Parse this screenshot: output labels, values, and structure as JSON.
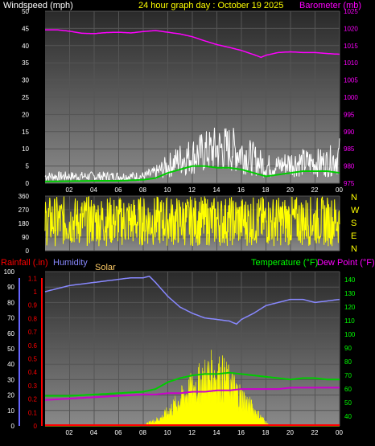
{
  "header": {
    "wind_label": "Windspeed (mph)",
    "title": "24 hour graph day : October 19 2025",
    "baro_label": "Barometer (mb)"
  },
  "bottom_header": {
    "rain_label": "Rainfall (.in)",
    "humidity_label": "Humidity",
    "solar_label": "Solar",
    "temp_label": "Temperature (°F)",
    "dew_label": "Dew Point (°F)"
  },
  "direction_letters": [
    "N",
    "W",
    "S",
    "E",
    "N"
  ],
  "colors": {
    "wind": "#ffffff",
    "gust": "#ffffff",
    "avg_wind": "#00cc00",
    "barometer": "#ff00ff",
    "direction": "#ffff00",
    "temperature": "#00cc00",
    "dew_point": "#cc00cc",
    "humidity": "#8888ff",
    "solar": "#ffff00",
    "rain": "#ff0000",
    "wind_label": "#ffffff",
    "title": "#ffff00",
    "baro_label": "#ff00ff",
    "rain_label": "#ff0000",
    "humidity_label": "#8888ff",
    "solar_label": "#ffcc66",
    "temp_label": "#00ff00",
    "dew_label": "#ff00ff"
  },
  "chart_data": [
    {
      "type": "line",
      "name": "wind-barometer",
      "x_ticks": [
        "02",
        "04",
        "06",
        "08",
        "10",
        "12",
        "14",
        "16",
        "18",
        "20",
        "22",
        "00"
      ],
      "y_left_ticks": [
        "0",
        "5",
        "10",
        "15",
        "20",
        "25",
        "30",
        "35",
        "40",
        "45",
        "50"
      ],
      "y_left_range": [
        0,
        50
      ],
      "y_right_ticks": [
        "975",
        "980",
        "985",
        "990",
        "995",
        "1000",
        "1005",
        "1010",
        "1015",
        "1020",
        "1025"
      ],
      "y_right_range": [
        975,
        1025
      ],
      "series": [
        {
          "name": "Windspeed (mph)",
          "axis": "left",
          "style": "noisy",
          "x": [
            0,
            2,
            4,
            6,
            8,
            9,
            10,
            11,
            12,
            13,
            14,
            15,
            16,
            17,
            18,
            19,
            20,
            21,
            22,
            23,
            24
          ],
          "y": [
            2,
            2,
            2,
            2,
            2,
            3,
            5,
            7,
            8,
            9,
            10,
            10,
            9,
            7,
            5,
            5,
            6,
            6,
            6,
            6,
            8
          ]
        },
        {
          "name": "Average wind",
          "axis": "left",
          "x": [
            0,
            2,
            4,
            6,
            8,
            9,
            10,
            11,
            12,
            13,
            14,
            15,
            16,
            17,
            18,
            19,
            20,
            21,
            22,
            23,
            24
          ],
          "y": [
            0.5,
            0.6,
            0.7,
            0.7,
            1,
            1.5,
            3,
            4,
            5,
            5,
            4.5,
            4.5,
            4,
            3,
            2,
            2.5,
            3,
            3.5,
            3.5,
            3.5,
            3
          ]
        },
        {
          "name": "Barometer (mb)",
          "axis": "right",
          "x": [
            0,
            1,
            2,
            3,
            4,
            5,
            6,
            7,
            8,
            9,
            10,
            11,
            12,
            13,
            14,
            15,
            16,
            17,
            17.6,
            18,
            19,
            20,
            21,
            22,
            23,
            24
          ],
          "y": [
            1019.6,
            1019.6,
            1019.2,
            1018.6,
            1018.5,
            1018.8,
            1018.9,
            1018.7,
            1019.1,
            1019.4,
            1018.9,
            1018.4,
            1017.6,
            1016.4,
            1015.3,
            1014.5,
            1013.6,
            1012.4,
            1011.6,
            1012.2,
            1013.0,
            1013.2,
            1013.0,
            1013.0,
            1012.7,
            1012.5
          ]
        }
      ]
    },
    {
      "type": "line",
      "name": "wind-direction",
      "x_ticks": [
        "02",
        "04",
        "06",
        "08",
        "10",
        "12",
        "14",
        "16",
        "18",
        "20",
        "22",
        "00"
      ],
      "y_ticks": [
        "0",
        "90",
        "180",
        "270",
        "360"
      ],
      "y_range": [
        0,
        360
      ],
      "series": [
        {
          "name": "Wind direction",
          "style": "noisy",
          "spread": [
            30,
            360
          ],
          "x": [
            0,
            24
          ],
          "y": [
            200,
            200
          ]
        }
      ]
    },
    {
      "type": "line",
      "name": "temp-humidity-solar-rain",
      "x_ticks": [
        "02",
        "04",
        "06",
        "08",
        "10",
        "12",
        "14",
        "16",
        "18",
        "20",
        "22",
        "00"
      ],
      "y_humidity_ticks": [
        "0",
        "10",
        "20",
        "30",
        "40",
        "50",
        "60",
        "70",
        "80",
        "90",
        "100"
      ],
      "y_humidity_range": [
        0,
        100
      ],
      "y_rain_ticks": [
        "0",
        "0.1",
        "0.2",
        "0.3",
        "0.4",
        "0.5",
        "0.6",
        "0.7",
        "0.8",
        "0.9",
        "1",
        "1.1"
      ],
      "y_rain_range": [
        0,
        1.15
      ],
      "y_temp_ticks": [
        "40",
        "50",
        "60",
        "70",
        "80",
        "90",
        "100",
        "110",
        "120",
        "130",
        "140"
      ],
      "y_temp_range": [
        33,
        146
      ],
      "series": [
        {
          "name": "Humidity",
          "axis": "humidity",
          "x": [
            0,
            1,
            2,
            3,
            4,
            5,
            6,
            7,
            8,
            8.5,
            9,
            10,
            11,
            12,
            13,
            14,
            15,
            15.6,
            16,
            17,
            18,
            19,
            20,
            21,
            22,
            23,
            24
          ],
          "y": [
            87,
            89,
            91,
            92,
            93,
            94,
            95,
            96,
            96,
            97,
            93,
            84,
            77,
            73,
            70,
            69,
            68,
            66,
            69,
            73,
            78,
            80,
            82,
            82,
            80,
            81,
            82
          ]
        },
        {
          "name": "Temperature (°F)",
          "axis": "temp",
          "x": [
            0,
            2,
            4,
            6,
            8,
            9,
            10,
            11,
            12,
            13,
            14,
            15,
            16,
            17,
            18,
            19,
            20,
            21,
            22,
            23,
            24
          ],
          "y": [
            55,
            55,
            56,
            57,
            58,
            60,
            65,
            68,
            70,
            71,
            71,
            72,
            71,
            70,
            69,
            68,
            67,
            68,
            68,
            67,
            67
          ]
        },
        {
          "name": "Dew Point (°F)",
          "axis": "temp",
          "x": [
            0,
            2,
            4,
            6,
            8,
            9,
            10,
            11,
            12,
            13,
            14,
            15,
            16,
            17,
            18,
            19,
            20,
            21,
            22,
            23,
            24
          ],
          "y": [
            52,
            53,
            54,
            55,
            56,
            56,
            57,
            57,
            58,
            58,
            59,
            59,
            60,
            60,
            60,
            60,
            61,
            61,
            61,
            61,
            61
          ]
        },
        {
          "name": "Solar",
          "axis": "humidity",
          "style": "filled-noisy",
          "x": [
            0,
            7.7,
            8.5,
            9.5,
            10.5,
            11.5,
            12.5,
            13.5,
            14.5,
            15.5,
            16.5,
            17.5,
            18.3,
            24
          ],
          "y": [
            0,
            0,
            2,
            5,
            12,
            20,
            26,
            32,
            30,
            22,
            14,
            6,
            0,
            0
          ]
        },
        {
          "name": "Rainfall (.in)",
          "axis": "rain",
          "x": [
            0,
            24
          ],
          "y": [
            0,
            0
          ]
        }
      ]
    }
  ]
}
